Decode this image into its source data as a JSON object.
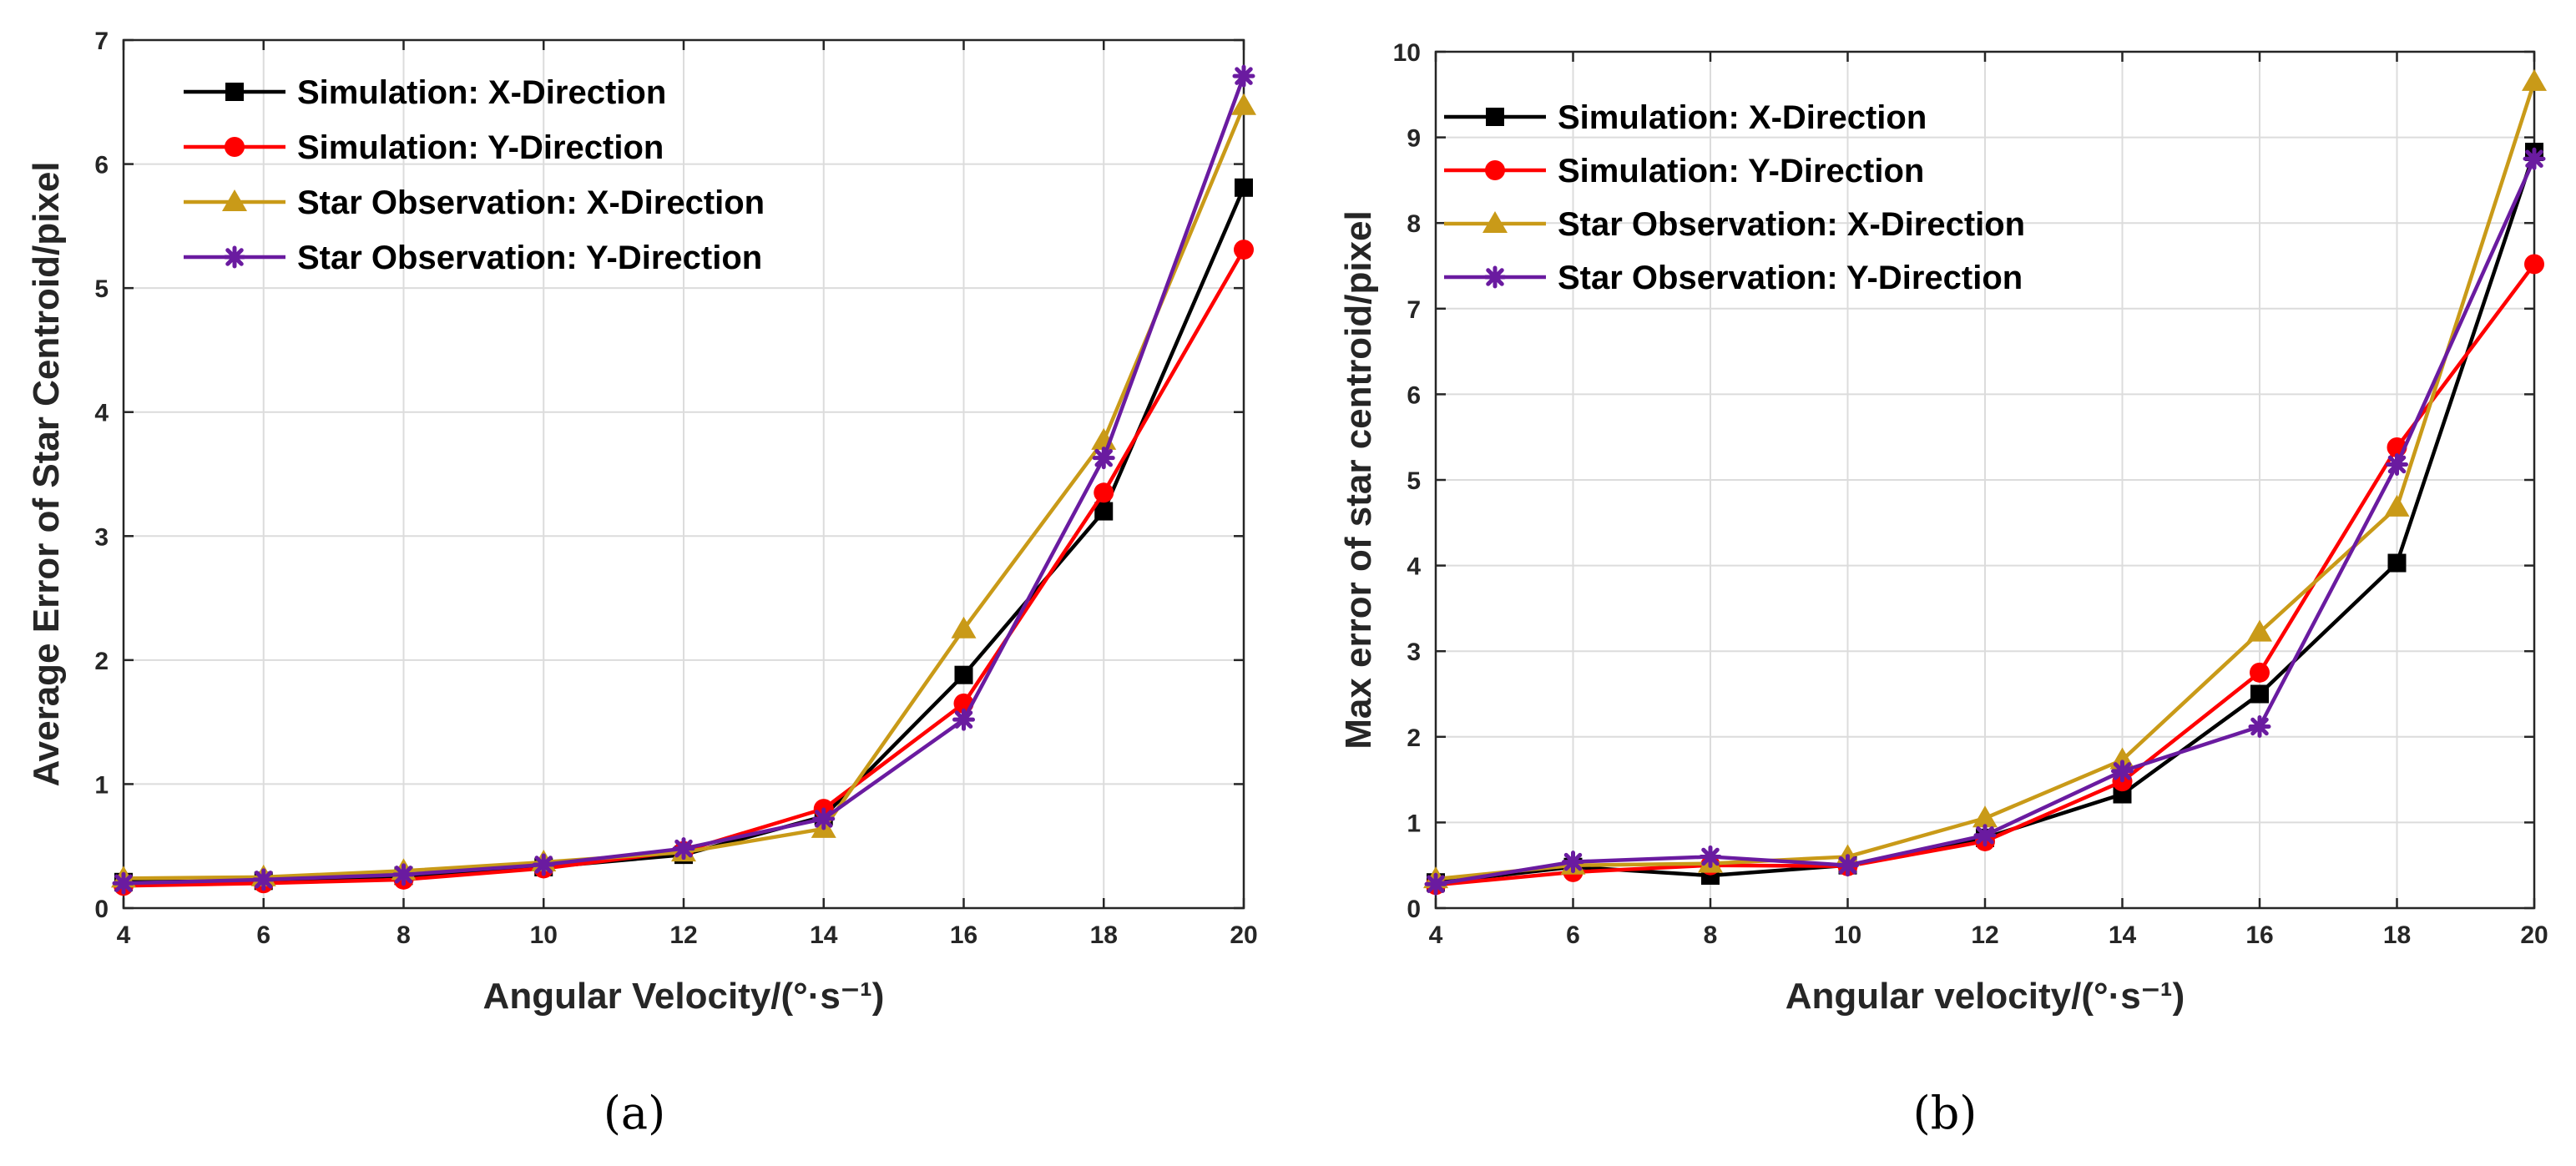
{
  "chart_data": [
    {
      "type": "line",
      "caption": "(a)",
      "title": "",
      "xlabel": "Angular Velocity/(°·s⁻¹)",
      "ylabel": "Average Error of Star Centroid/pixel",
      "xlim": [
        4,
        20
      ],
      "ylim": [
        0,
        7
      ],
      "x_ticks": [
        4,
        6,
        8,
        10,
        12,
        14,
        16,
        18,
        20
      ],
      "y_ticks": [
        0,
        1,
        2,
        3,
        4,
        5,
        6,
        7
      ],
      "grid": true,
      "legend_position": "top-left",
      "x": [
        4,
        6,
        8,
        10,
        12,
        14,
        16,
        18,
        20
      ],
      "series": [
        {
          "name": "Simulation: X-Direction",
          "color": "#000000",
          "marker": "square",
          "values": [
            0.21,
            0.22,
            0.26,
            0.33,
            0.43,
            0.74,
            1.88,
            3.2,
            5.81
          ]
        },
        {
          "name": "Simulation: Y-Direction",
          "color": "#ff0000",
          "marker": "circle",
          "values": [
            0.18,
            0.2,
            0.23,
            0.32,
            0.46,
            0.8,
            1.65,
            3.35,
            5.31
          ]
        },
        {
          "name": "Star Observation: X-Direction",
          "color": "#c99a18",
          "marker": "triangle",
          "values": [
            0.24,
            0.25,
            0.3,
            0.37,
            0.45,
            0.64,
            2.25,
            3.77,
            6.47
          ]
        },
        {
          "name": "Star Observation: Y-Direction",
          "color": "#6a1ba0",
          "marker": "asterisk",
          "values": [
            0.2,
            0.23,
            0.27,
            0.35,
            0.48,
            0.72,
            1.52,
            3.63,
            6.71
          ]
        }
      ]
    },
    {
      "type": "line",
      "caption": "(b)",
      "title": "",
      "xlabel": "Angular velocity/(°·s⁻¹)",
      "ylabel": "Max error of star centroid/pixel",
      "xlim": [
        4,
        20
      ],
      "ylim": [
        0,
        10
      ],
      "x_ticks": [
        4,
        6,
        8,
        10,
        12,
        14,
        16,
        18,
        20
      ],
      "y_ticks": [
        0,
        1,
        2,
        3,
        4,
        5,
        6,
        7,
        8,
        9,
        10
      ],
      "grid": true,
      "legend_position": "top-left",
      "x": [
        4,
        6,
        8,
        10,
        12,
        14,
        16,
        18,
        20
      ],
      "series": [
        {
          "name": "Simulation: X-Direction",
          "color": "#000000",
          "marker": "square",
          "values": [
            0.3,
            0.48,
            0.38,
            0.5,
            0.82,
            1.33,
            2.5,
            4.03,
            8.83
          ]
        },
        {
          "name": "Simulation: Y-Direction",
          "color": "#ff0000",
          "marker": "circle",
          "values": [
            0.27,
            0.42,
            0.5,
            0.49,
            0.78,
            1.48,
            2.75,
            5.38,
            7.52
          ]
        },
        {
          "name": "Star Observation: X-Direction",
          "color": "#c99a18",
          "marker": "triangle",
          "values": [
            0.34,
            0.5,
            0.52,
            0.6,
            1.05,
            1.73,
            3.22,
            4.68,
            9.65
          ]
        },
        {
          "name": "Star Observation: Y-Direction",
          "color": "#6a1ba0",
          "marker": "asterisk",
          "values": [
            0.28,
            0.54,
            0.6,
            0.5,
            0.85,
            1.6,
            2.12,
            5.18,
            8.75
          ]
        }
      ]
    }
  ]
}
